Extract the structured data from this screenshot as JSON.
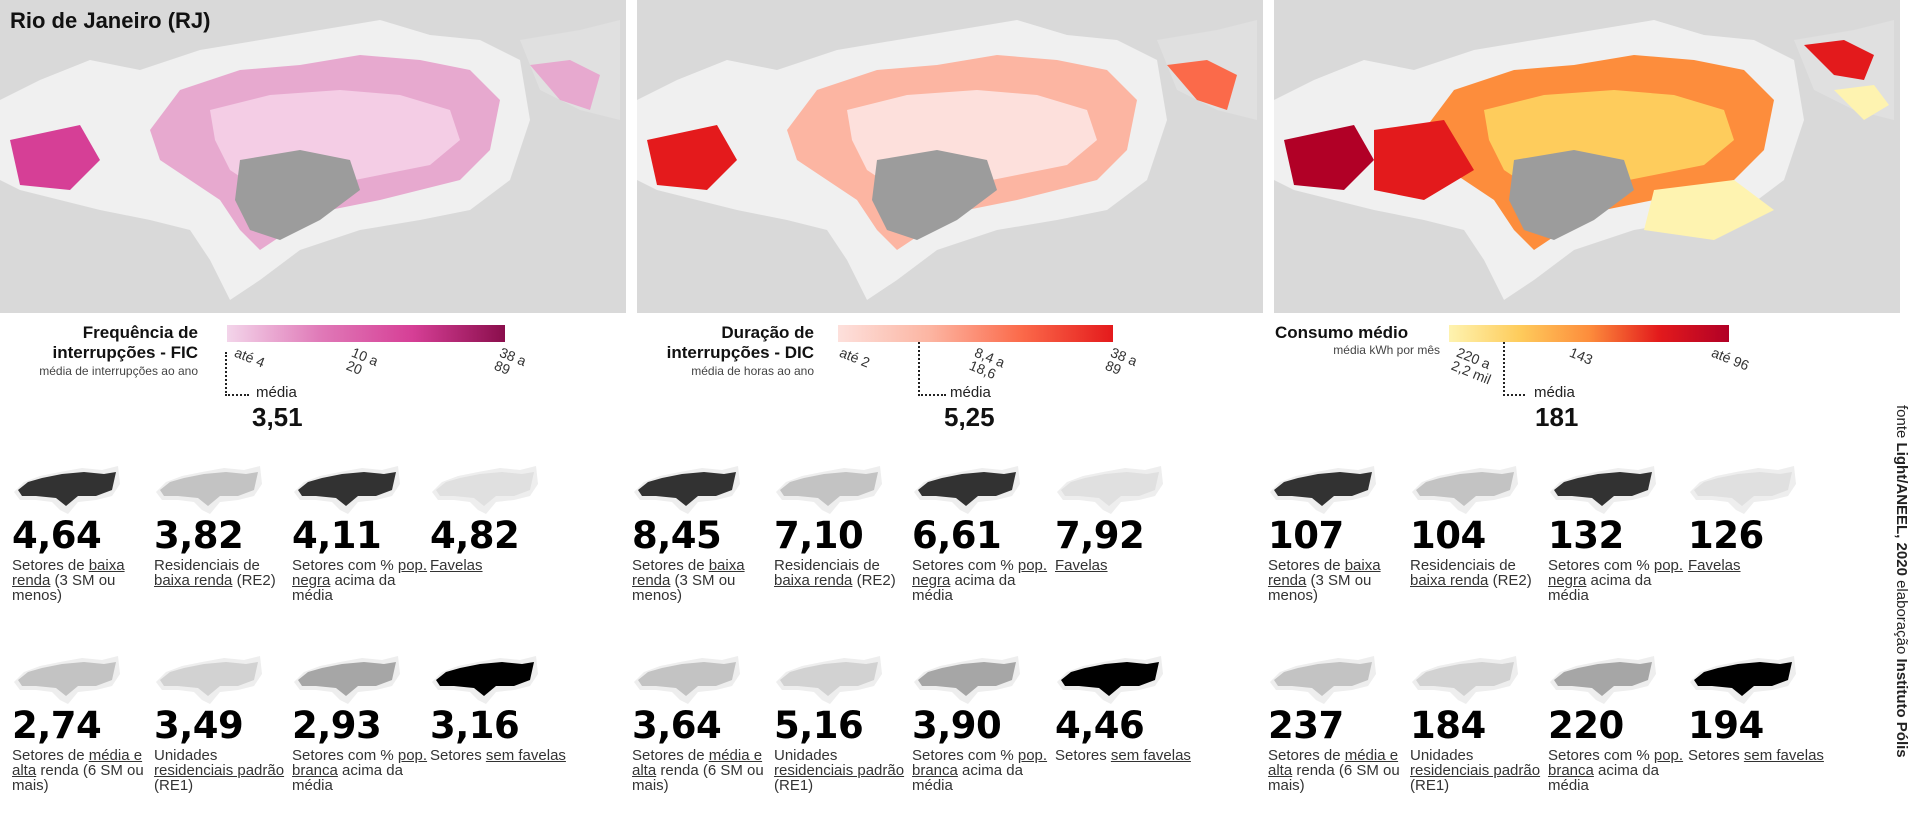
{
  "title": "Rio de Janeiro (RJ)",
  "maps": [
    {
      "legend_title": "Frequência de interrupções - FIC",
      "legend_subtitle": "média de interrupções ao ano",
      "ticks": [
        "até 4",
        "10 a 20",
        "38 a 89"
      ],
      "media_label": "média",
      "media_value": "3,51",
      "colors": [
        "#f3d5ea",
        "#d63f96",
        "#8a0e4c"
      ],
      "stats_row1": [
        {
          "value": "4,64",
          "label": "Setores de baixa renda (3 SM ou menos)",
          "link": "baixa renda"
        },
        {
          "value": "3,82",
          "label": "Residenciais de baixa renda (RE2)",
          "link": "baixa renda"
        },
        {
          "value": "4,11",
          "label": "Setores com % pop. negra acima da média",
          "link": "pop. negra"
        },
        {
          "value": "4,82",
          "label": "Favelas",
          "link": "Favelas"
        }
      ],
      "stats_row2": [
        {
          "value": "2,74",
          "label": "Setores de média e alta renda (6 SM ou mais)",
          "link": "média e alta"
        },
        {
          "value": "3,49",
          "label": "Unidades residenciais padrão (RE1)",
          "link": "residenciais padrão"
        },
        {
          "value": "2,93",
          "label": "Setores com % pop. branca acima da média",
          "link": "pop. branca"
        },
        {
          "value": "3,16",
          "label": "Setores sem favelas",
          "link": "sem favelas"
        }
      ]
    },
    {
      "legend_title": "Duração de interrupções - DIC",
      "legend_subtitle": "média de horas ao ano",
      "ticks": [
        "até 2",
        "8,4 a 18,6",
        "38 a 89"
      ],
      "media_label": "média",
      "media_value": "5,25",
      "colors": [
        "#fde0dc",
        "#fb6a4a",
        "#e41a1c"
      ],
      "stats_row1": [
        {
          "value": "8,45",
          "label": "Setores de baixa renda (3 SM ou menos)",
          "link": "baixa renda"
        },
        {
          "value": "7,10",
          "label": "Residenciais de baixa renda (RE2)",
          "link": "baixa renda"
        },
        {
          "value": "6,61",
          "label": "Setores com % pop. negra acima da média",
          "link": "pop. negra"
        },
        {
          "value": "7,92",
          "label": "Favelas",
          "link": "Favelas"
        }
      ],
      "stats_row2": [
        {
          "value": "3,64",
          "label": "Setores de média e alta renda (6 SM ou mais)",
          "link": "média e alta"
        },
        {
          "value": "5,16",
          "label": "Unidades residenciais padrão (RE1)",
          "link": "residenciais padrão"
        },
        {
          "value": "3,90",
          "label": "Setores com % pop. branca acima da média",
          "link": "pop. branca"
        },
        {
          "value": "4,46",
          "label": "Setores sem favelas",
          "link": "sem favelas"
        }
      ]
    },
    {
      "legend_title": "Consumo médio",
      "legend_subtitle": "média kWh por mês",
      "ticks": [
        "220 a 2,2 mil",
        "143",
        "até 96"
      ],
      "media_label": "média",
      "media_value": "181",
      "colors": [
        "#fef3b0",
        "#fd8d3c",
        "#b10026"
      ],
      "stats_row1": [
        {
          "value": "107",
          "label": "Setores de baixa renda (3 SM ou menos)",
          "link": "baixa renda"
        },
        {
          "value": "104",
          "label": "Residenciais de baixa renda (RE2)",
          "link": "baixa renda"
        },
        {
          "value": "132",
          "label": "Setores com % pop. negra acima da média",
          "link": "pop. negra"
        },
        {
          "value": "126",
          "label": "Favelas",
          "link": "Favelas"
        }
      ],
      "stats_row2": [
        {
          "value": "237",
          "label": "Setores de média e alta renda (6 SM ou mais)",
          "link": "média e alta"
        },
        {
          "value": "184",
          "label": "Unidades residenciais padrão (RE1)",
          "link": "residenciais padrão"
        },
        {
          "value": "220",
          "label": "Setores com % pop. branca acima da média",
          "link": "pop. branca"
        },
        {
          "value": "194",
          "label": "Setores sem favelas",
          "link": "sem favelas"
        }
      ]
    }
  ],
  "source": {
    "prefix": "fonte",
    "source_name": "Light/ANEEL, 2020",
    "middle": "elaboração",
    "author": "Instituto Pólis"
  }
}
